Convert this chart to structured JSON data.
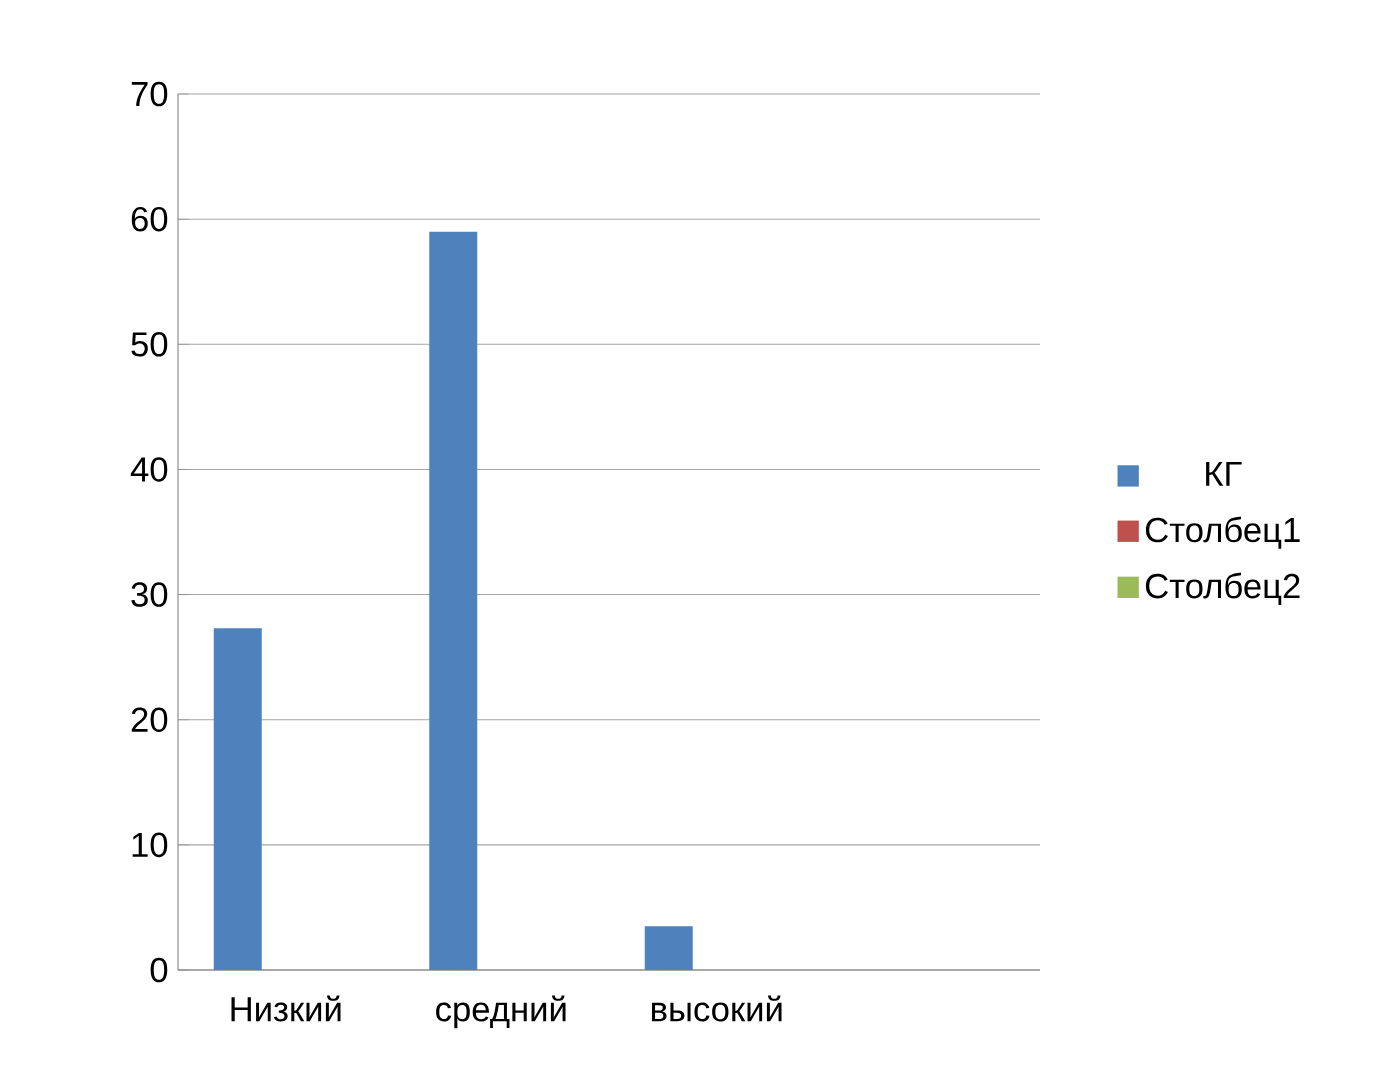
{
  "chart_data": {
    "type": "bar",
    "categories": [
      "Низкий",
      "средний",
      "высокий",
      null
    ],
    "series": [
      {
        "name": "КГ",
        "color": "#4f81bd",
        "values": [
          27.3,
          59,
          3.5,
          null
        ]
      },
      {
        "name": "Столбец1",
        "color": "#c0504d",
        "values": [
          null,
          null,
          null,
          null
        ]
      },
      {
        "name": "Столбец2",
        "color": "#9bbb59",
        "values": [
          null,
          null,
          null,
          null
        ]
      }
    ],
    "ylim": [
      0,
      70
    ],
    "yticks": [
      0,
      10,
      20,
      30,
      40,
      50,
      60,
      70
    ],
    "grid": "y",
    "legend": "right"
  }
}
